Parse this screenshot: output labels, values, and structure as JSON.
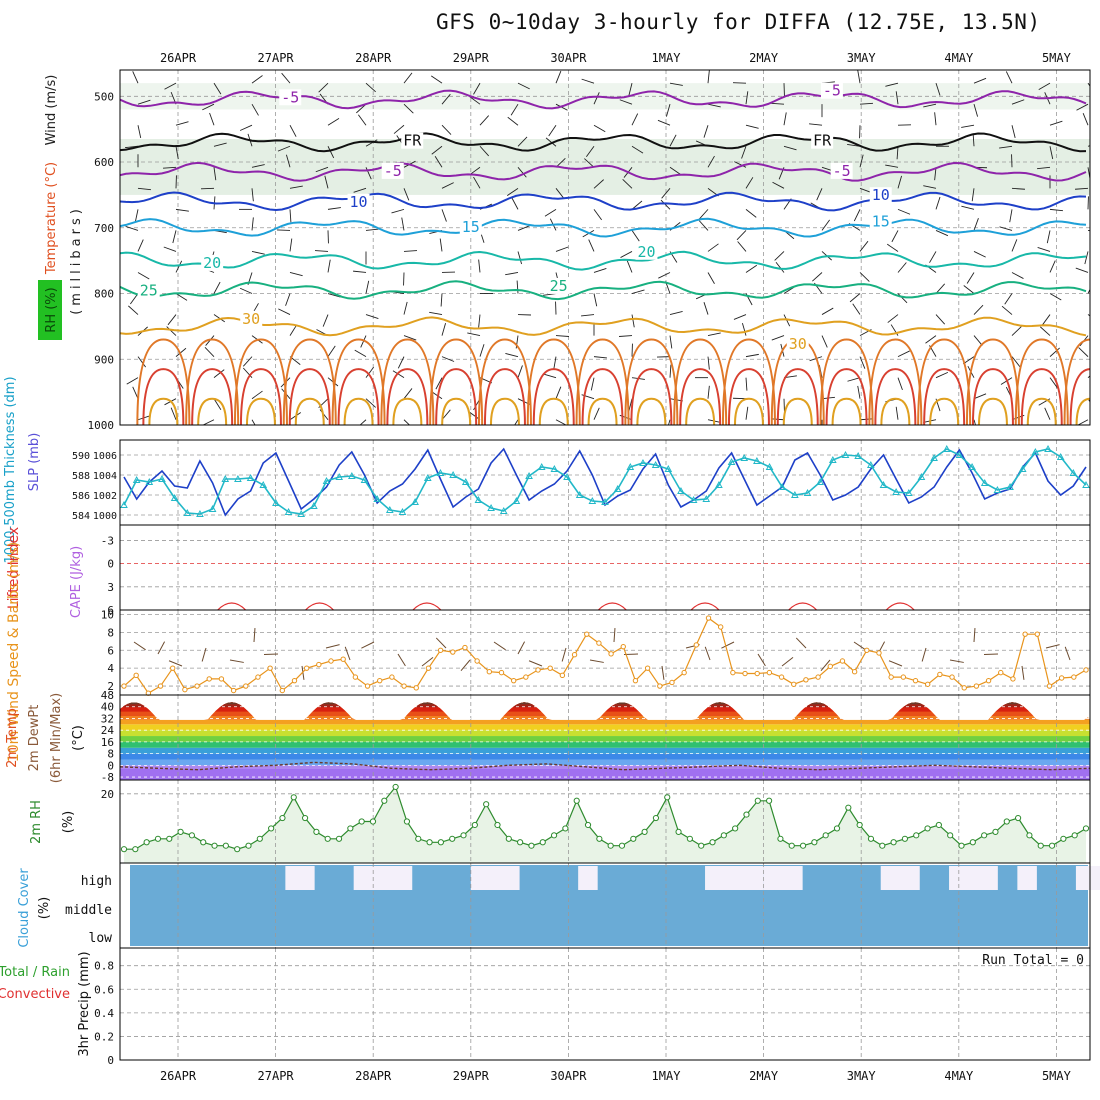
{
  "title": "GFS 0~10day 3-hourly for DIFFA (12.75E, 13.5N)",
  "chart_data": [
    {
      "panel": "upper-air",
      "type": "contour",
      "days": [
        "26APR",
        "27APR",
        "28APR",
        "29APR",
        "30APR",
        "1MAY",
        "2MAY",
        "3MAY",
        "4MAY",
        "5MAY"
      ],
      "ylabel": {
        "wind": "Wind (m/s)",
        "temperature": "Temperature (°C)",
        "units": "(millibars)",
        "rh": "RH (%)"
      },
      "pressure_levels": [
        500,
        600,
        700,
        800,
        900,
        1000
      ],
      "ylim": [
        1000,
        460
      ],
      "contours": [
        {
          "label": "-5",
          "level": 505,
          "color": "#8e24aa"
        },
        {
          "label": "FR",
          "level": 570,
          "color": "#111111"
        },
        {
          "label": "-5",
          "level": 615,
          "color": "#8e24aa"
        },
        {
          "label": "10",
          "level": 660,
          "color": "#1e40c8"
        },
        {
          "label": "15",
          "level": 700,
          "color": "#1ea0d8"
        },
        {
          "label": "20",
          "level": 750,
          "color": "#18b8a8"
        },
        {
          "label": "25",
          "level": 795,
          "color": "#18b080"
        },
        {
          "label": "30",
          "level": 850,
          "color": "#e0a020"
        }
      ],
      "contour_labels": [
        {
          "text": "-5",
          "day": 1.15,
          "level": 503,
          "color": "#8e24aa"
        },
        {
          "text": "-5",
          "day": 6.7,
          "level": 493,
          "color": "#8e24aa"
        },
        {
          "text": "FR",
          "day": 2.4,
          "level": 569,
          "color": "#111111"
        },
        {
          "text": "FR",
          "day": 6.6,
          "level": 569,
          "color": "#111111"
        },
        {
          "text": "-5",
          "day": 2.2,
          "level": 615,
          "color": "#8e24aa"
        },
        {
          "text": "-5",
          "day": 6.8,
          "level": 615,
          "color": "#8e24aa"
        },
        {
          "text": "10",
          "day": 1.85,
          "level": 662,
          "color": "#1e40c8"
        },
        {
          "text": "10",
          "day": 7.2,
          "level": 652,
          "color": "#1e40c8"
        },
        {
          "text": "15",
          "day": 3.0,
          "level": 700,
          "color": "#1ea0d8"
        },
        {
          "text": "15",
          "day": 7.2,
          "level": 692,
          "color": "#1ea0d8"
        },
        {
          "text": "20",
          "day": 0.35,
          "level": 755,
          "color": "#18b8a8"
        },
        {
          "text": "20",
          "day": 4.8,
          "level": 738,
          "color": "#18b8a8"
        },
        {
          "text": "25",
          "day": -0.3,
          "level": 797,
          "color": "#18b080"
        },
        {
          "text": "25",
          "day": 3.9,
          "level": 790,
          "color": "#18b080"
        },
        {
          "text": "30",
          "day": 0.75,
          "level": 840,
          "color": "#e0a020"
        },
        {
          "text": "30",
          "day": 6.35,
          "level": 878,
          "color": "#e0a020"
        }
      ]
    },
    {
      "panel": "slp-thickness",
      "type": "line",
      "ylabel_left": "1000-500mb Thickness (dm)",
      "ylabel_right": "SLP (mb)",
      "thickness_ticks": [
        584,
        586,
        588,
        590
      ],
      "slp_ticks": [
        1000,
        1002,
        1004,
        1006
      ],
      "ylim_slp": [
        999,
        1007.5
      ],
      "series": [
        {
          "name": "SLP",
          "color": "#1e40c8",
          "values": [
            1003.8,
            1001.6,
            1003.3,
            1004.4,
            1002.9,
            1002.7,
            1005.4,
            1003.2,
            1000.0,
            1001.6,
            1002.4,
            1005.2,
            1006.2,
            1003.4,
            1000.6,
            1001.6,
            1002.8,
            1005.0,
            1006.3,
            1004.0,
            1001.2,
            1002.4,
            1003.1,
            1004.6,
            1006.5,
            1003.6,
            1000.8,
            1001.8,
            1002.6,
            1005.2,
            1006.6,
            1004.0,
            1001.5,
            1002.4,
            1003.1,
            1004.4,
            1006.4,
            1004.0,
            1001.0,
            1001.9,
            1002.5,
            1004.6,
            1006.1,
            1003.0,
            1000.8,
            1001.5,
            1002.4,
            1004.7,
            1006.2,
            1003.6,
            1001.0,
            1001.9,
            1002.8,
            1005.5,
            1006.2,
            1004.0,
            1001.5,
            1002.0,
            1002.8,
            1004.6,
            1006.0,
            1003.6,
            1001.2,
            1001.8,
            1002.8,
            1004.8,
            1006.5,
            1004.2,
            1001.6,
            1002.2,
            1002.6,
            1004.8,
            1006.2,
            1003.4,
            1002.0,
            1002.9,
            1004.8
          ]
        },
        {
          "name": "Thickness",
          "color": "#22b8c8",
          "values": [
            1001.0,
            1003.5,
            1003.3,
            1003.6,
            1001.7,
            1000.2,
            1000.1,
            1000.6,
            1003.6,
            1003.6,
            1003.7,
            1003.0,
            1001.2,
            1000.3,
            1000.1,
            1000.9,
            1003.4,
            1003.8,
            1003.9,
            1003.5,
            1001.6,
            1000.5,
            1000.3,
            1001.3,
            1003.7,
            1004.2,
            1004.0,
            1003.3,
            1001.5,
            1000.7,
            1000.4,
            1001.4,
            1003.9,
            1004.8,
            1004.6,
            1003.8,
            1002.0,
            1001.4,
            1001.3,
            1002.6,
            1004.8,
            1005.2,
            1005.0,
            1004.6,
            1002.4,
            1001.5,
            1001.6,
            1003.0,
            1005.3,
            1005.7,
            1005.4,
            1004.8,
            1002.8,
            1002.0,
            1002.2,
            1003.3,
            1005.5,
            1006.0,
            1005.9,
            1005.0,
            1003.0,
            1002.3,
            1002.2,
            1003.8,
            1005.7,
            1006.6,
            1006.0,
            1004.8,
            1003.2,
            1002.5,
            1002.8,
            1004.6,
            1006.3,
            1006.6,
            1005.8,
            1004.2,
            1003.0
          ]
        }
      ]
    },
    {
      "panel": "cape-li",
      "type": "line",
      "ylabel_left": "Lifted Index",
      "ylabel_right": "CAPE (J/kg)",
      "li_ticks": [
        -3,
        0,
        3,
        6
      ],
      "ylim": [
        -5,
        6
      ],
      "events": [
        0.55,
        1.45,
        2.55,
        4.45,
        5.4,
        6.4,
        7.4
      ]
    },
    {
      "panel": "10m-wind",
      "type": "line",
      "ylabel": "10m Wind Speed & Barbs (m/s)",
      "ticks": [
        2,
        4,
        6,
        8,
        10
      ],
      "ylim": [
        1,
        10.5
      ],
      "series": [
        {
          "name": "10m Wind Speed",
          "color": "#e8941c",
          "values": [
            2.0,
            3.2,
            1.2,
            2.0,
            4.0,
            1.6,
            2.0,
            2.8,
            2.8,
            1.5,
            2.0,
            3.0,
            4.0,
            1.5,
            2.6,
            4.0,
            4.4,
            4.8,
            5.0,
            3.0,
            2.0,
            2.6,
            3.0,
            2.0,
            1.8,
            4.0,
            6.0,
            5.8,
            6.3,
            4.8,
            3.6,
            3.5,
            2.6,
            3.0,
            3.8,
            4.0,
            3.2,
            5.5,
            7.8,
            6.8,
            5.6,
            6.4,
            2.6,
            4.0,
            2.0,
            2.4,
            3.5,
            6.6,
            9.6,
            8.6,
            3.5,
            3.4,
            3.4,
            3.5,
            3.0,
            2.2,
            2.7,
            3.0,
            4.2,
            4.8,
            3.6,
            6.0,
            5.7,
            3.0,
            3.0,
            2.6,
            2.2,
            3.3,
            3.0,
            1.8,
            2.0,
            2.6,
            3.5,
            2.8,
            7.8,
            7.8,
            2.0,
            2.9,
            3.0,
            3.8
          ]
        }
      ]
    },
    {
      "panel": "2m-temp",
      "type": "area",
      "ylabel": "2m Temp 2m DewPt (6hr Min/Max) (°C)",
      "ticks": [
        -8,
        0,
        8,
        16,
        24,
        32,
        40,
        48
      ],
      "ylim": [
        -10,
        48
      ],
      "min_temp": 31,
      "max_temp": 43,
      "dewpoint": [
        -1,
        -2,
        -3,
        -1,
        0,
        2,
        1,
        -2,
        -3,
        -2,
        0,
        1,
        -1,
        -3,
        -2,
        -1,
        0,
        -2,
        -3,
        -2,
        -1,
        0,
        -1,
        -2,
        -3,
        -2
      ]
    },
    {
      "panel": "2m-rh",
      "type": "line",
      "ylabel": "2m RH (%)",
      "ticks": [
        20
      ],
      "ylim": [
        0,
        24
      ],
      "series": [
        {
          "name": "2m RH",
          "color": "#2e8b2e",
          "values": [
            4,
            4,
            6,
            7,
            7,
            9,
            8,
            6,
            5,
            5,
            4,
            5,
            7,
            10,
            13,
            19,
            13,
            9,
            7,
            7,
            10,
            12,
            12,
            18,
            22,
            12,
            7,
            6,
            6,
            7,
            8,
            11,
            17,
            11,
            7,
            6,
            5,
            6,
            8,
            10,
            18,
            11,
            7,
            5,
            5,
            7,
            9,
            13,
            19,
            9,
            7,
            5,
            6,
            8,
            10,
            14,
            18,
            18,
            7,
            5,
            5,
            6,
            8,
            10,
            16,
            11,
            7,
            5,
            6,
            7,
            8,
            10,
            11,
            8,
            5,
            6,
            8,
            9,
            12,
            13,
            8,
            5,
            5,
            7,
            8,
            10
          ]
        }
      ]
    },
    {
      "panel": "cloud-cover",
      "type": "area",
      "ylabel": "Cloud Cover (%)",
      "levels": [
        "high",
        "middle",
        "low"
      ],
      "color": "#6aabd6",
      "high_gaps": [
        [
          1.1,
          1.4
        ],
        [
          1.8,
          2.4
        ],
        [
          3.0,
          3.5
        ],
        [
          4.1,
          4.3
        ],
        [
          5.4,
          6.0
        ],
        [
          6.0,
          6.4
        ],
        [
          7.2,
          7.6
        ],
        [
          7.9,
          8.4
        ],
        [
          8.6,
          8.8
        ],
        [
          9.2,
          9.6
        ]
      ]
    },
    {
      "panel": "precip",
      "type": "bar",
      "ylabel": "3hr Precip (mm)",
      "legend": [
        "Total / Rain",
        "Convective"
      ],
      "ticks": [
        0,
        0.2,
        0.4,
        0.6,
        0.8
      ],
      "ylim": [
        0,
        0.95
      ],
      "run_total_label": "Run Total = 0",
      "values": []
    }
  ]
}
